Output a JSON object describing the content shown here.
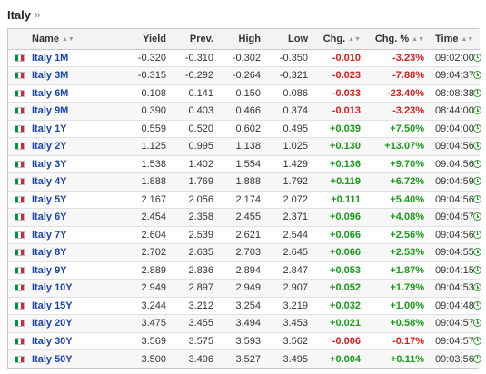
{
  "page": {
    "title": "Italy",
    "title_suffix": "»"
  },
  "table": {
    "headers": {
      "name": "Name",
      "yield": "Yield",
      "prev": "Prev.",
      "high": "High",
      "low": "Low",
      "chg": "Chg.",
      "chg_pct": "Chg. %",
      "time": "Time"
    },
    "flag_icon": "italy-flag-icon",
    "status_icon": "clock-icon",
    "colors": {
      "positive": "#1a9c1a",
      "negative": "#d91c1c",
      "link": "#1a44a8"
    },
    "rows": [
      {
        "name": "Italy 1M",
        "yield": "-0.320",
        "prev": "-0.310",
        "high": "-0.302",
        "low": "-0.350",
        "chg": "-0.010",
        "chg_pct": "-3.23%",
        "time": "09:02:00",
        "dir": "neg"
      },
      {
        "name": "Italy 3M",
        "yield": "-0.315",
        "prev": "-0.292",
        "high": "-0.264",
        "low": "-0.321",
        "chg": "-0.023",
        "chg_pct": "-7.88%",
        "time": "09:04:37",
        "dir": "neg"
      },
      {
        "name": "Italy 6M",
        "yield": "0.108",
        "prev": "0.141",
        "high": "0.150",
        "low": "0.086",
        "chg": "-0.033",
        "chg_pct": "-23.40%",
        "time": "08:08:38",
        "dir": "neg"
      },
      {
        "name": "Italy 9M",
        "yield": "0.390",
        "prev": "0.403",
        "high": "0.466",
        "low": "0.374",
        "chg": "-0.013",
        "chg_pct": "-3.23%",
        "time": "08:44:00",
        "dir": "neg"
      },
      {
        "name": "Italy 1Y",
        "yield": "0.559",
        "prev": "0.520",
        "high": "0.602",
        "low": "0.495",
        "chg": "+0.039",
        "chg_pct": "+7.50%",
        "time": "09:04:00",
        "dir": "pos"
      },
      {
        "name": "Italy 2Y",
        "yield": "1.125",
        "prev": "0.995",
        "high": "1.138",
        "low": "1.025",
        "chg": "+0.130",
        "chg_pct": "+13.07%",
        "time": "09:04:56",
        "dir": "pos"
      },
      {
        "name": "Italy 3Y",
        "yield": "1.538",
        "prev": "1.402",
        "high": "1.554",
        "low": "1.429",
        "chg": "+0.136",
        "chg_pct": "+9.70%",
        "time": "09:04:56",
        "dir": "pos"
      },
      {
        "name": "Italy 4Y",
        "yield": "1.888",
        "prev": "1.769",
        "high": "1.888",
        "low": "1.792",
        "chg": "+0.119",
        "chg_pct": "+6.72%",
        "time": "09:04:59",
        "dir": "pos"
      },
      {
        "name": "Italy 5Y",
        "yield": "2.167",
        "prev": "2.056",
        "high": "2.174",
        "low": "2.072",
        "chg": "+0.111",
        "chg_pct": "+5.40%",
        "time": "09:04:56",
        "dir": "pos"
      },
      {
        "name": "Italy 6Y",
        "yield": "2.454",
        "prev": "2.358",
        "high": "2.455",
        "low": "2.371",
        "chg": "+0.096",
        "chg_pct": "+4.08%",
        "time": "09:04:57",
        "dir": "pos"
      },
      {
        "name": "Italy 7Y",
        "yield": "2.604",
        "prev": "2.539",
        "high": "2.621",
        "low": "2.544",
        "chg": "+0.066",
        "chg_pct": "+2.56%",
        "time": "09:04:56",
        "dir": "pos"
      },
      {
        "name": "Italy 8Y",
        "yield": "2.702",
        "prev": "2.635",
        "high": "2.703",
        "low": "2.645",
        "chg": "+0.066",
        "chg_pct": "+2.53%",
        "time": "09:04:55",
        "dir": "pos"
      },
      {
        "name": "Italy 9Y",
        "yield": "2.889",
        "prev": "2.836",
        "high": "2.894",
        "low": "2.847",
        "chg": "+0.053",
        "chg_pct": "+1.87%",
        "time": "09:04:15",
        "dir": "pos"
      },
      {
        "name": "Italy 10Y",
        "yield": "2.949",
        "prev": "2.897",
        "high": "2.949",
        "low": "2.907",
        "chg": "+0.052",
        "chg_pct": "+1.79%",
        "time": "09:04:53",
        "dir": "pos"
      },
      {
        "name": "Italy 15Y",
        "yield": "3.244",
        "prev": "3.212",
        "high": "3.254",
        "low": "3.219",
        "chg": "+0.032",
        "chg_pct": "+1.00%",
        "time": "09:04:48",
        "dir": "pos"
      },
      {
        "name": "Italy 20Y",
        "yield": "3.475",
        "prev": "3.455",
        "high": "3.494",
        "low": "3.453",
        "chg": "+0.021",
        "chg_pct": "+0.58%",
        "time": "09:04:57",
        "dir": "pos"
      },
      {
        "name": "Italy 30Y",
        "yield": "3.569",
        "prev": "3.575",
        "high": "3.593",
        "low": "3.562",
        "chg": "-0.006",
        "chg_pct": "-0.17%",
        "time": "09:04:57",
        "dir": "neg"
      },
      {
        "name": "Italy 50Y",
        "yield": "3.500",
        "prev": "3.496",
        "high": "3.527",
        "low": "3.495",
        "chg": "+0.004",
        "chg_pct": "+0.11%",
        "time": "09:03:56",
        "dir": "pos"
      }
    ]
  }
}
